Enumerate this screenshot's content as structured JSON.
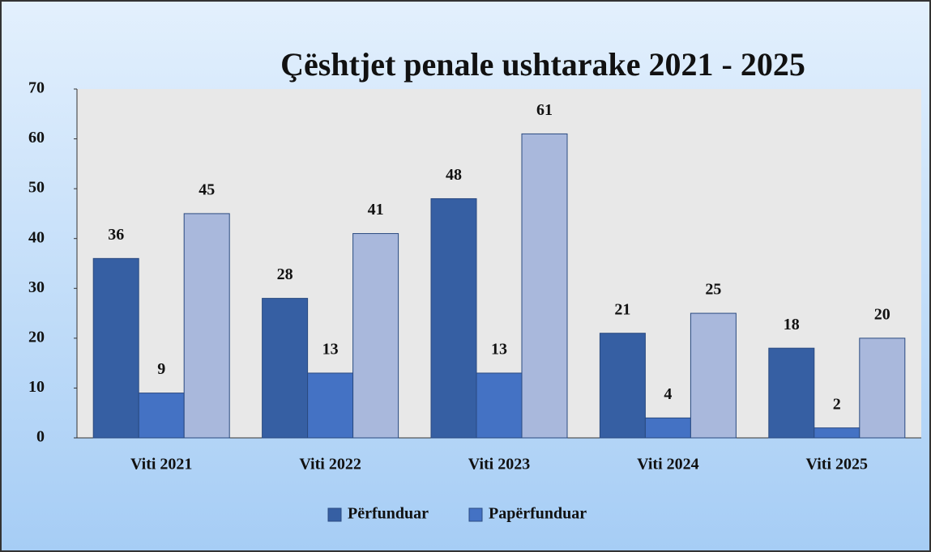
{
  "chart_data": {
    "type": "bar",
    "title": "Çështjet penale ushtarake 2021 - 2025",
    "categories": [
      "Viti 2021",
      "Viti 2022",
      "Viti 2023",
      "Viti 2024",
      "Viti 2025"
    ],
    "series": [
      {
        "name": "Përfunduar",
        "color": "#365fa3",
        "values": [
          36,
          28,
          48,
          21,
          18
        ]
      },
      {
        "name": "Papërfunduar",
        "color": "#4472c4",
        "values": [
          9,
          13,
          13,
          4,
          2
        ]
      },
      {
        "color": "#a9b8dc",
        "values": [
          45,
          41,
          61,
          25,
          20
        ]
      }
    ],
    "ylim": [
      0,
      70
    ],
    "yticks": [
      0,
      10,
      20,
      30,
      40,
      50,
      60,
      70
    ],
    "legend": "bottom"
  }
}
